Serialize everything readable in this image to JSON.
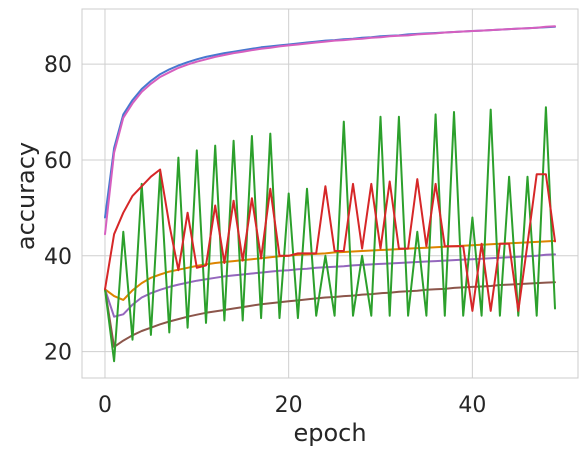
{
  "chart_data": {
    "type": "line",
    "title": "",
    "xlabel": "epoch",
    "ylabel": "accuracy",
    "xlim": [
      -2.5,
      51.5
    ],
    "ylim": [
      14.5,
      91.5
    ],
    "xticks": [
      0,
      20,
      40
    ],
    "yticks": [
      20,
      40,
      60,
      80
    ],
    "grid": true,
    "legend": "none",
    "series": [
      {
        "color": "#4878cf",
        "x": [
          0,
          1,
          2,
          3,
          4,
          5,
          6,
          7,
          8,
          9,
          10,
          11,
          12,
          13,
          14,
          15,
          16,
          17,
          18,
          19,
          20,
          21,
          22,
          23,
          24,
          25,
          26,
          27,
          28,
          29,
          30,
          31,
          32,
          33,
          34,
          35,
          36,
          37,
          38,
          39,
          40,
          41,
          42,
          43,
          44,
          45,
          46,
          47,
          48,
          49
        ],
        "values": [
          48,
          62.5,
          69.5,
          72.5,
          74.8,
          76.5,
          77.9,
          78.9,
          79.7,
          80.4,
          81.0,
          81.5,
          81.9,
          82.3,
          82.6,
          82.9,
          83.2,
          83.5,
          83.7,
          83.9,
          84.1,
          84.3,
          84.5,
          84.7,
          84.9,
          85.0,
          85.2,
          85.3,
          85.5,
          85.6,
          85.8,
          85.9,
          86.0,
          86.2,
          86.3,
          86.4,
          86.5,
          86.6,
          86.7,
          86.8,
          86.9,
          87.0,
          87.1,
          87.2,
          87.3,
          87.4,
          87.5,
          87.6,
          87.7,
          87.8
        ]
      },
      {
        "color": "#d65fbf",
        "x": [
          0,
          1,
          2,
          3,
          4,
          5,
          6,
          7,
          8,
          9,
          10,
          11,
          12,
          13,
          14,
          15,
          16,
          17,
          18,
          19,
          20,
          21,
          22,
          23,
          24,
          25,
          26,
          27,
          28,
          29,
          30,
          31,
          32,
          33,
          34,
          35,
          36,
          37,
          38,
          39,
          40,
          41,
          42,
          43,
          44,
          45,
          46,
          47,
          48,
          49
        ],
        "values": [
          44.5,
          61.5,
          68.8,
          71.8,
          74.2,
          75.9,
          77.3,
          78.3,
          79.2,
          79.9,
          80.5,
          81.0,
          81.5,
          81.9,
          82.3,
          82.6,
          82.9,
          83.2,
          83.4,
          83.7,
          83.9,
          84.1,
          84.3,
          84.5,
          84.7,
          84.9,
          85.0,
          85.2,
          85.3,
          85.5,
          85.6,
          85.8,
          85.9,
          86.0,
          86.2,
          86.3,
          86.4,
          86.6,
          86.7,
          86.8,
          86.9,
          87.0,
          87.1,
          87.2,
          87.3,
          87.4,
          87.5,
          87.6,
          87.8,
          87.9
        ]
      },
      {
        "color": "#dd8400",
        "x": [
          0,
          1,
          2,
          3,
          4,
          5,
          6,
          7,
          8,
          9,
          10,
          11,
          12,
          13,
          14,
          15,
          16,
          17,
          18,
          19,
          20,
          21,
          22,
          23,
          24,
          25,
          26,
          27,
          28,
          29,
          30,
          31,
          32,
          33,
          34,
          35,
          36,
          37,
          38,
          39,
          40,
          41,
          42,
          43,
          44,
          45,
          46,
          47,
          48,
          49
        ],
        "values": [
          33,
          31.6,
          30.8,
          32.8,
          34.3,
          35.4,
          36.1,
          36.7,
          37.1,
          37.5,
          37.9,
          38.2,
          38.5,
          38.7,
          38.9,
          39.1,
          39.3,
          39.5,
          39.7,
          39.9,
          40.0,
          40.2,
          40.3,
          40.4,
          40.5,
          40.7,
          40.8,
          40.9,
          41.0,
          41.1,
          41.2,
          41.3,
          41.4,
          41.5,
          41.6,
          41.7,
          41.8,
          41.9,
          42.0,
          42.1,
          42.2,
          42.3,
          42.4,
          42.5,
          42.6,
          42.7,
          42.8,
          42.9,
          43.0,
          43.1
        ]
      },
      {
        "color": "#9467bd",
        "x": [
          0,
          1,
          2,
          3,
          4,
          5,
          6,
          7,
          8,
          9,
          10,
          11,
          12,
          13,
          14,
          15,
          16,
          17,
          18,
          19,
          20,
          21,
          22,
          23,
          24,
          25,
          26,
          27,
          28,
          29,
          30,
          31,
          32,
          33,
          34,
          35,
          36,
          37,
          38,
          39,
          40,
          41,
          42,
          43,
          44,
          45,
          46,
          47,
          48,
          49
        ],
        "values": [
          33,
          27.3,
          27.8,
          29.8,
          31.3,
          32.2,
          32.9,
          33.5,
          34.0,
          34.4,
          34.8,
          35.1,
          35.4,
          35.7,
          35.9,
          36.1,
          36.3,
          36.5,
          36.7,
          36.9,
          37.0,
          37.2,
          37.3,
          37.5,
          37.6,
          37.7,
          37.8,
          38.0,
          38.1,
          38.2,
          38.3,
          38.4,
          38.5,
          38.6,
          38.7,
          38.8,
          38.9,
          39.0,
          39.1,
          39.2,
          39.3,
          39.4,
          39.5,
          39.6,
          39.7,
          39.8,
          39.9,
          40.0,
          40.2,
          40.3
        ]
      },
      {
        "color": "#8c564b",
        "x": [
          0,
          1,
          2,
          3,
          4,
          5,
          6,
          7,
          8,
          9,
          10,
          11,
          12,
          13,
          14,
          15,
          16,
          17,
          18,
          19,
          20,
          21,
          22,
          23,
          24,
          25,
          26,
          27,
          28,
          29,
          30,
          31,
          32,
          33,
          34,
          35,
          36,
          37,
          38,
          39,
          40,
          41,
          42,
          43,
          44,
          45,
          46,
          47,
          48,
          49
        ],
        "values": [
          33,
          21,
          22.3,
          23.4,
          24.3,
          25.0,
          25.7,
          26.3,
          26.8,
          27.3,
          27.7,
          28.1,
          28.4,
          28.7,
          29.0,
          29.3,
          29.6,
          29.9,
          30.1,
          30.3,
          30.5,
          30.7,
          30.9,
          31.1,
          31.3,
          31.4,
          31.6,
          31.7,
          31.9,
          32.0,
          32.2,
          32.3,
          32.5,
          32.6,
          32.7,
          32.9,
          33.0,
          33.1,
          33.3,
          33.4,
          33.5,
          33.6,
          33.7,
          33.9,
          34.0,
          34.1,
          34.2,
          34.3,
          34.4,
          34.5
        ]
      },
      {
        "color": "#2ca02c",
        "x": [
          0,
          1,
          2,
          3,
          4,
          5,
          6,
          7,
          8,
          9,
          10,
          11,
          12,
          13,
          14,
          15,
          16,
          17,
          18,
          19,
          20,
          21,
          22,
          23,
          24,
          25,
          26,
          27,
          28,
          29,
          30,
          31,
          32,
          33,
          34,
          35,
          36,
          37,
          38,
          39,
          40,
          41,
          42,
          43,
          44,
          45,
          46,
          47,
          48,
          49
        ],
        "values": [
          33,
          18,
          45,
          22.5,
          55,
          23.5,
          57.5,
          24,
          60.5,
          25,
          62,
          26,
          63,
          26.5,
          64,
          26.5,
          65,
          27,
          65.5,
          27,
          53,
          27,
          54,
          27.5,
          40,
          27.5,
          68,
          27.5,
          40,
          27.5,
          69,
          27.5,
          69,
          27.5,
          45,
          27.5,
          69.5,
          27.5,
          70,
          27.5,
          48,
          27.5,
          70.5,
          27.5,
          56.5,
          27.5,
          56.5,
          27.5,
          71,
          29
        ]
      },
      {
        "color": "#d62728",
        "x": [
          0,
          1,
          2,
          3,
          4,
          5,
          6,
          7,
          8,
          9,
          10,
          11,
          12,
          13,
          14,
          15,
          16,
          17,
          18,
          19,
          20,
          21,
          22,
          23,
          24,
          25,
          26,
          27,
          28,
          29,
          30,
          31,
          32,
          33,
          34,
          35,
          36,
          37,
          38,
          39,
          40,
          41,
          42,
          43,
          44,
          45,
          46,
          47,
          48,
          49
        ],
        "values": [
          33,
          44.5,
          49,
          52.5,
          54.5,
          56.5,
          58,
          46.5,
          37,
          49,
          37.5,
          38,
          50.5,
          38.5,
          51.5,
          39,
          52,
          39.5,
          54,
          40,
          40,
          40.5,
          40.5,
          40.5,
          54.5,
          41,
          41,
          55,
          41.5,
          55,
          41.5,
          55.5,
          41.5,
          41.5,
          56,
          42,
          55,
          42,
          42,
          42,
          28.5,
          42.5,
          28.5,
          42.5,
          42.5,
          28.5,
          42.5,
          57,
          57,
          43
        ]
      }
    ]
  }
}
